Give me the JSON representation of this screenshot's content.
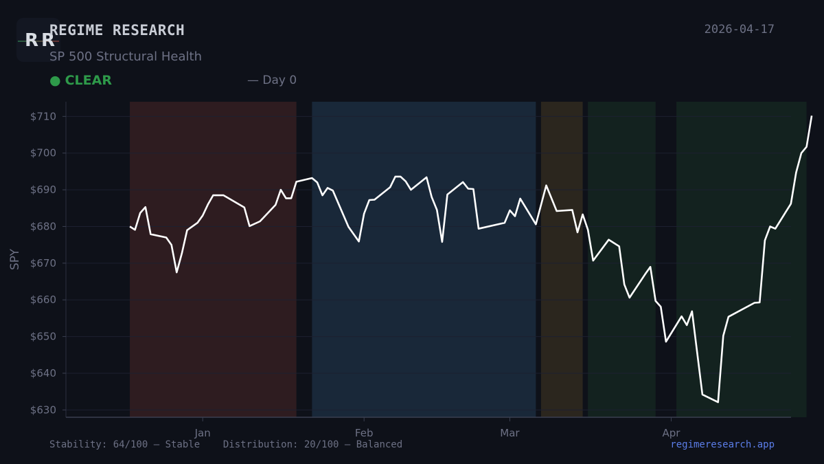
{
  "header": {
    "logo_text": "RR",
    "brand": "REGIME RESEARCH",
    "subtitle": "SP 500 Structural Health",
    "status_label": "CLEAR",
    "status_dot": "●",
    "status_day": "— Day 0",
    "date": "2026-04-17"
  },
  "footer": {
    "stability": "Stability: 64/100 — Stable",
    "distribution": "Distribution: 20/100 — Balanced",
    "site": "regimeresearch.app"
  },
  "colors": {
    "background": "#0e1119",
    "line": "#ffffff",
    "status_green": "#2e9a4a",
    "regime_red": "#2e1c20",
    "regime_blue": "#192839",
    "regime_brown": "#2b261e",
    "regime_green": "#13221f",
    "link_blue": "#5b7de8"
  },
  "chart_data": {
    "type": "line",
    "ylabel": "SPY",
    "ylim": [
      628,
      714
    ],
    "y_ticks": [
      630,
      640,
      650,
      660,
      670,
      680,
      690,
      700,
      710
    ],
    "y_tick_labels": [
      "$630",
      "$640",
      "$650",
      "$660",
      "$670",
      "$680",
      "$690",
      "$700",
      "$710"
    ],
    "x_ticks": [
      {
        "date": "2026-01-01",
        "label": "Jan"
      },
      {
        "date": "2026-02-01",
        "label": "Feb"
      },
      {
        "date": "2026-03-01",
        "label": "Mar"
      },
      {
        "date": "2026-04-01",
        "label": "Apr"
      }
    ],
    "xlim": [
      "2025-12-11",
      "2026-04-27"
    ],
    "grid": true,
    "regimes": [
      {
        "start": "2025-12-18",
        "end": "2026-01-19",
        "color": "#2e1c20"
      },
      {
        "start": "2026-01-22",
        "end": "2026-03-06",
        "color": "#192839"
      },
      {
        "start": "2026-03-07",
        "end": "2026-03-15",
        "color": "#2b261e"
      },
      {
        "start": "2026-03-16",
        "end": "2026-03-29",
        "color": "#13221f"
      },
      {
        "start": "2026-04-02",
        "end": "2026-04-27",
        "color": "#13221f"
      }
    ],
    "series": [
      {
        "values": [
          {
            "x": "2025-12-18",
            "y": 680.0
          },
          {
            "x": "2025-12-19",
            "y": 679.1
          },
          {
            "x": "2025-12-20",
            "y": 683.7
          },
          {
            "x": "2025-12-21",
            "y": 685.3
          },
          {
            "x": "2025-12-22",
            "y": 677.9
          },
          {
            "x": "2025-12-25",
            "y": 677.0
          },
          {
            "x": "2025-12-26",
            "y": 675.0
          },
          {
            "x": "2025-12-27",
            "y": 667.5
          },
          {
            "x": "2025-12-28",
            "y": 672.7
          },
          {
            "x": "2025-12-29",
            "y": 679.0
          },
          {
            "x": "2025-12-31",
            "y": 681.0
          },
          {
            "x": "2026-01-01",
            "y": 683.0
          },
          {
            "x": "2026-01-02",
            "y": 686.0
          },
          {
            "x": "2026-01-03",
            "y": 688.5
          },
          {
            "x": "2026-01-05",
            "y": 688.5
          },
          {
            "x": "2026-01-09",
            "y": 685.2
          },
          {
            "x": "2026-01-10",
            "y": 680.1
          },
          {
            "x": "2026-01-12",
            "y": 681.4
          },
          {
            "x": "2026-01-15",
            "y": 685.9
          },
          {
            "x": "2026-01-16",
            "y": 690.0
          },
          {
            "x": "2026-01-17",
            "y": 687.7
          },
          {
            "x": "2026-01-18",
            "y": 687.7
          },
          {
            "x": "2026-01-19",
            "y": 692.2
          },
          {
            "x": "2026-01-22",
            "y": 693.2
          },
          {
            "x": "2026-01-23",
            "y": 692.0
          },
          {
            "x": "2026-01-24",
            "y": 688.5
          },
          {
            "x": "2026-01-25",
            "y": 690.5
          },
          {
            "x": "2026-01-26",
            "y": 689.8
          },
          {
            "x": "2026-01-29",
            "y": 679.9
          },
          {
            "x": "2026-01-31",
            "y": 675.9
          },
          {
            "x": "2026-02-01",
            "y": 683.5
          },
          {
            "x": "2026-02-02",
            "y": 687.2
          },
          {
            "x": "2026-02-03",
            "y": 687.3
          },
          {
            "x": "2026-02-06",
            "y": 690.7
          },
          {
            "x": "2026-02-07",
            "y": 693.6
          },
          {
            "x": "2026-02-08",
            "y": 693.6
          },
          {
            "x": "2026-02-09",
            "y": 692.3
          },
          {
            "x": "2026-02-10",
            "y": 690.0
          },
          {
            "x": "2026-02-13",
            "y": 693.4
          },
          {
            "x": "2026-02-14",
            "y": 688.0
          },
          {
            "x": "2026-02-15",
            "y": 684.5
          },
          {
            "x": "2026-02-16",
            "y": 675.8
          },
          {
            "x": "2026-02-17",
            "y": 688.7
          },
          {
            "x": "2026-02-20",
            "y": 692.1
          },
          {
            "x": "2026-02-21",
            "y": 690.3
          },
          {
            "x": "2026-02-22",
            "y": 690.2
          },
          {
            "x": "2026-02-23",
            "y": 679.4
          },
          {
            "x": "2026-02-28",
            "y": 681.0
          },
          {
            "x": "2026-03-01",
            "y": 684.4
          },
          {
            "x": "2026-03-02",
            "y": 682.8
          },
          {
            "x": "2026-03-03",
            "y": 687.6
          },
          {
            "x": "2026-03-06",
            "y": 680.6
          },
          {
            "x": "2026-03-08",
            "y": 691.2
          },
          {
            "x": "2026-03-10",
            "y": 684.2
          },
          {
            "x": "2026-03-13",
            "y": 684.5
          },
          {
            "x": "2026-03-14",
            "y": 678.4
          },
          {
            "x": "2026-03-15",
            "y": 683.3
          },
          {
            "x": "2026-03-16",
            "y": 679.1
          },
          {
            "x": "2026-03-17",
            "y": 670.7
          },
          {
            "x": "2026-03-20",
            "y": 676.4
          },
          {
            "x": "2026-03-22",
            "y": 674.6
          },
          {
            "x": "2026-03-23",
            "y": 664.2
          },
          {
            "x": "2026-03-24",
            "y": 660.6
          },
          {
            "x": "2026-03-27",
            "y": 667.0
          },
          {
            "x": "2026-03-28",
            "y": 669.0
          },
          {
            "x": "2026-03-29",
            "y": 659.7
          },
          {
            "x": "2026-03-30",
            "y": 658.1
          },
          {
            "x": "2026-03-31",
            "y": 648.6
          },
          {
            "x": "2026-04-03",
            "y": 655.5
          },
          {
            "x": "2026-04-04",
            "y": 653.1
          },
          {
            "x": "2026-04-05",
            "y": 656.9
          },
          {
            "x": "2026-04-07",
            "y": 634.2
          },
          {
            "x": "2026-04-10",
            "y": 632.1
          },
          {
            "x": "2026-04-11",
            "y": 650.2
          },
          {
            "x": "2026-04-12",
            "y": 655.4
          },
          {
            "x": "2026-04-17",
            "y": 659.2
          },
          {
            "x": "2026-04-18",
            "y": 659.3
          },
          {
            "x": "2026-04-19",
            "y": 676.2
          },
          {
            "x": "2026-04-20",
            "y": 680.0
          },
          {
            "x": "2026-04-21",
            "y": 679.4
          },
          {
            "x": "2026-04-24",
            "y": 686.2
          },
          {
            "x": "2026-04-25",
            "y": 694.7
          },
          {
            "x": "2026-04-26",
            "y": 700.0
          },
          {
            "x": "2026-04-27",
            "y": 701.7
          },
          {
            "x": "2026-04-28",
            "y": 710.2
          }
        ]
      }
    ]
  }
}
